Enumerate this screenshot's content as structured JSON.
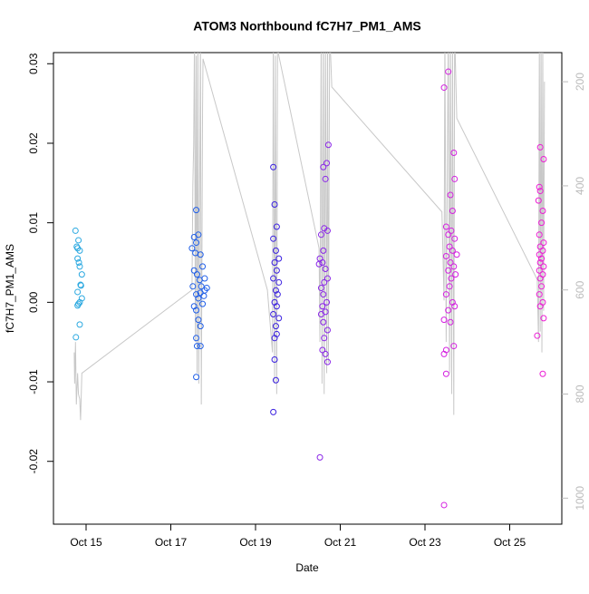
{
  "chart_data": {
    "type": "scatter",
    "title": "ATOM3 Northbound fC7H7_PM1_AMS",
    "x_label": "Date",
    "y_label": "fC7H7_PM1_AMS",
    "xlim": [
      14.23,
      26.23
    ],
    "ylim": [
      -0.0279,
      0.0314
    ],
    "y2lim": [
      1050,
      144
    ],
    "xticks": [
      {
        "value": 15,
        "label": "Oct 15"
      },
      {
        "value": 17,
        "label": "Oct 17"
      },
      {
        "value": 19,
        "label": "Oct 19"
      },
      {
        "value": 21,
        "label": "Oct 21"
      },
      {
        "value": 23,
        "label": "Oct 23"
      },
      {
        "value": 25,
        "label": "Oct 25"
      }
    ],
    "yticks": [
      -0.02,
      -0.01,
      {
        "value": 0,
        "label": "0.00"
      },
      0.01,
      0.02,
      0.03
    ],
    "y2ticks": [
      200,
      400,
      600,
      800,
      1000
    ],
    "series": [
      {
        "color": "#2aa8e0",
        "x": [
          14.75,
          14.8,
          14.78,
          14.85,
          14.82,
          14.8,
          14.83,
          14.9,
          14.85,
          14.87,
          14.88,
          14.8,
          14.9,
          14.85,
          14.8,
          14.82,
          14.85,
          14.76
        ],
        "values": [
          0.009,
          0.0068,
          0.007,
          0.0065,
          0.0078,
          0.0055,
          0.005,
          0.0035,
          0.0045,
          0.0022,
          0.0021,
          0.0013,
          0.0005,
          0.0,
          -0.0004,
          -0.0002,
          -0.0028,
          -0.0044
        ]
      },
      {
        "color": "#1f5ee8",
        "x": [
          17.6,
          17.65,
          17.55,
          17.6,
          17.5,
          17.58,
          17.7,
          17.75,
          17.55,
          17.62,
          17.68,
          17.72,
          17.8,
          17.52,
          17.6,
          17.65,
          17.7,
          17.75,
          17.55,
          17.6,
          17.65,
          17.7,
          17.6,
          17.62,
          17.7,
          17.6,
          17.8,
          17.85,
          17.78
        ],
        "values": [
          0.0116,
          0.0085,
          0.0082,
          0.0075,
          0.0068,
          0.0062,
          0.006,
          0.0045,
          0.004,
          0.0035,
          0.0028,
          0.002,
          0.0015,
          0.002,
          0.001,
          0.0005,
          0.0012,
          -0.0002,
          -0.0005,
          -0.001,
          -0.0022,
          -0.003,
          -0.0045,
          -0.0055,
          -0.0055,
          -0.0094,
          0.003,
          0.0018,
          0.0008
        ]
      },
      {
        "color": "#3a20e0",
        "x": [
          19.42,
          19.45,
          19.5,
          19.42,
          19.48,
          19.55,
          19.45,
          19.5,
          19.42,
          19.55,
          19.48,
          19.52,
          19.45,
          19.5,
          19.42,
          19.55,
          19.48,
          19.45,
          19.5,
          19.45,
          19.48,
          19.42
        ],
        "values": [
          0.017,
          0.0123,
          0.0095,
          0.008,
          0.0065,
          0.0055,
          0.005,
          0.004,
          0.003,
          0.0025,
          0.0015,
          0.001,
          0.0,
          -0.0005,
          -0.0015,
          -0.002,
          -0.003,
          -0.0045,
          -0.004,
          -0.0072,
          -0.0098,
          -0.0138
        ]
      },
      {
        "color": "#8a25e8",
        "x": [
          20.72,
          20.6,
          20.68,
          20.65,
          20.62,
          20.7,
          20.55,
          20.6,
          20.52,
          20.58,
          20.65,
          20.5,
          20.7,
          20.62,
          20.55,
          20.6,
          20.68,
          20.58,
          20.65,
          20.55,
          20.6,
          20.7,
          20.62,
          20.58,
          20.65,
          20.7,
          20.52
        ],
        "values": [
          0.0198,
          0.017,
          0.0175,
          0.0155,
          0.0093,
          0.009,
          0.0085,
          0.0065,
          0.0055,
          0.005,
          0.0042,
          0.0048,
          0.003,
          0.0025,
          0.0018,
          0.001,
          0.0,
          -0.0005,
          -0.0012,
          -0.0015,
          -0.0025,
          -0.0035,
          -0.0045,
          -0.006,
          -0.0065,
          -0.0075,
          -0.0195
        ]
      },
      {
        "color": "#d420e0",
        "x": [
          23.55,
          23.45,
          23.68,
          23.7,
          23.6,
          23.65,
          23.5,
          23.62,
          23.55,
          23.7,
          23.58,
          23.65,
          23.75,
          23.5,
          23.6,
          23.68,
          23.55,
          23.72,
          23.62,
          23.58,
          23.5,
          23.65,
          23.7,
          23.55,
          23.45,
          23.6,
          23.68,
          23.5,
          23.45,
          23.5,
          23.45
        ],
        "values": [
          0.029,
          0.027,
          0.0188,
          0.0155,
          0.0135,
          0.0115,
          0.0095,
          0.009,
          0.0085,
          0.008,
          0.007,
          0.0065,
          0.006,
          0.0058,
          0.005,
          0.0045,
          0.004,
          0.0035,
          0.003,
          0.002,
          0.001,
          0.0,
          -0.0005,
          -0.001,
          -0.0022,
          -0.0025,
          -0.0055,
          -0.006,
          -0.0065,
          -0.009,
          -0.0255
        ]
      },
      {
        "color": "#ec1cd4",
        "x": [
          25.72,
          25.8,
          25.7,
          25.72,
          25.68,
          25.78,
          25.75,
          25.7,
          25.8,
          25.72,
          25.78,
          25.7,
          25.75,
          25.72,
          25.8,
          25.7,
          25.78,
          25.72,
          25.75,
          25.7,
          25.78,
          25.72,
          25.8,
          25.65,
          25.78
        ],
        "values": [
          0.0195,
          0.018,
          0.0145,
          0.014,
          0.0128,
          0.0115,
          0.01,
          0.0085,
          0.0075,
          0.007,
          0.0065,
          0.006,
          0.0055,
          0.005,
          0.0045,
          0.004,
          0.0035,
          0.003,
          0.002,
          0.001,
          0.0,
          -0.0005,
          -0.002,
          -0.0042,
          -0.009
        ]
      },
      {
        "type": "line",
        "axis": "y2",
        "color": "#c8c8c8",
        "x": [
          14.72,
          14.73,
          14.75,
          14.77,
          14.8,
          14.82,
          14.85,
          14.87,
          14.9,
          17.5,
          17.52,
          17.54,
          17.56,
          17.58,
          17.6,
          17.62,
          17.64,
          17.66,
          17.7,
          17.72,
          17.75,
          17.76,
          19.28,
          19.4,
          19.42,
          19.45,
          19.47,
          19.5,
          19.52,
          19.55,
          20.5,
          20.52,
          20.55,
          20.57,
          20.6,
          20.62,
          20.65,
          20.68,
          20.7,
          20.72,
          20.75,
          20.8,
          23.4,
          23.45,
          23.47,
          23.5,
          23.55,
          23.58,
          23.6,
          23.63,
          23.65,
          23.68,
          23.7,
          23.75,
          25.65,
          25.68,
          25.7,
          25.72,
          25.74,
          25.76,
          25.78,
          25.8,
          25.82
        ],
        "values": [
          720,
          780,
          700,
          820,
          760,
          800,
          810,
          850,
          760,
          600,
          400,
          320,
          100,
          700,
          150,
          760,
          100,
          780,
          100,
          820,
          250,
          156,
          600,
          720,
          100,
          780,
          150,
          800,
          100,
          150,
          520,
          700,
          100,
          780,
          100,
          800,
          120,
          760,
          100,
          740,
          100,
          210,
          450,
          620,
          100,
          700,
          100,
          760,
          100,
          800,
          120,
          840,
          100,
          270,
          580,
          700,
          120,
          680,
          100,
          720,
          130,
          640,
          200
        ]
      }
    ]
  }
}
